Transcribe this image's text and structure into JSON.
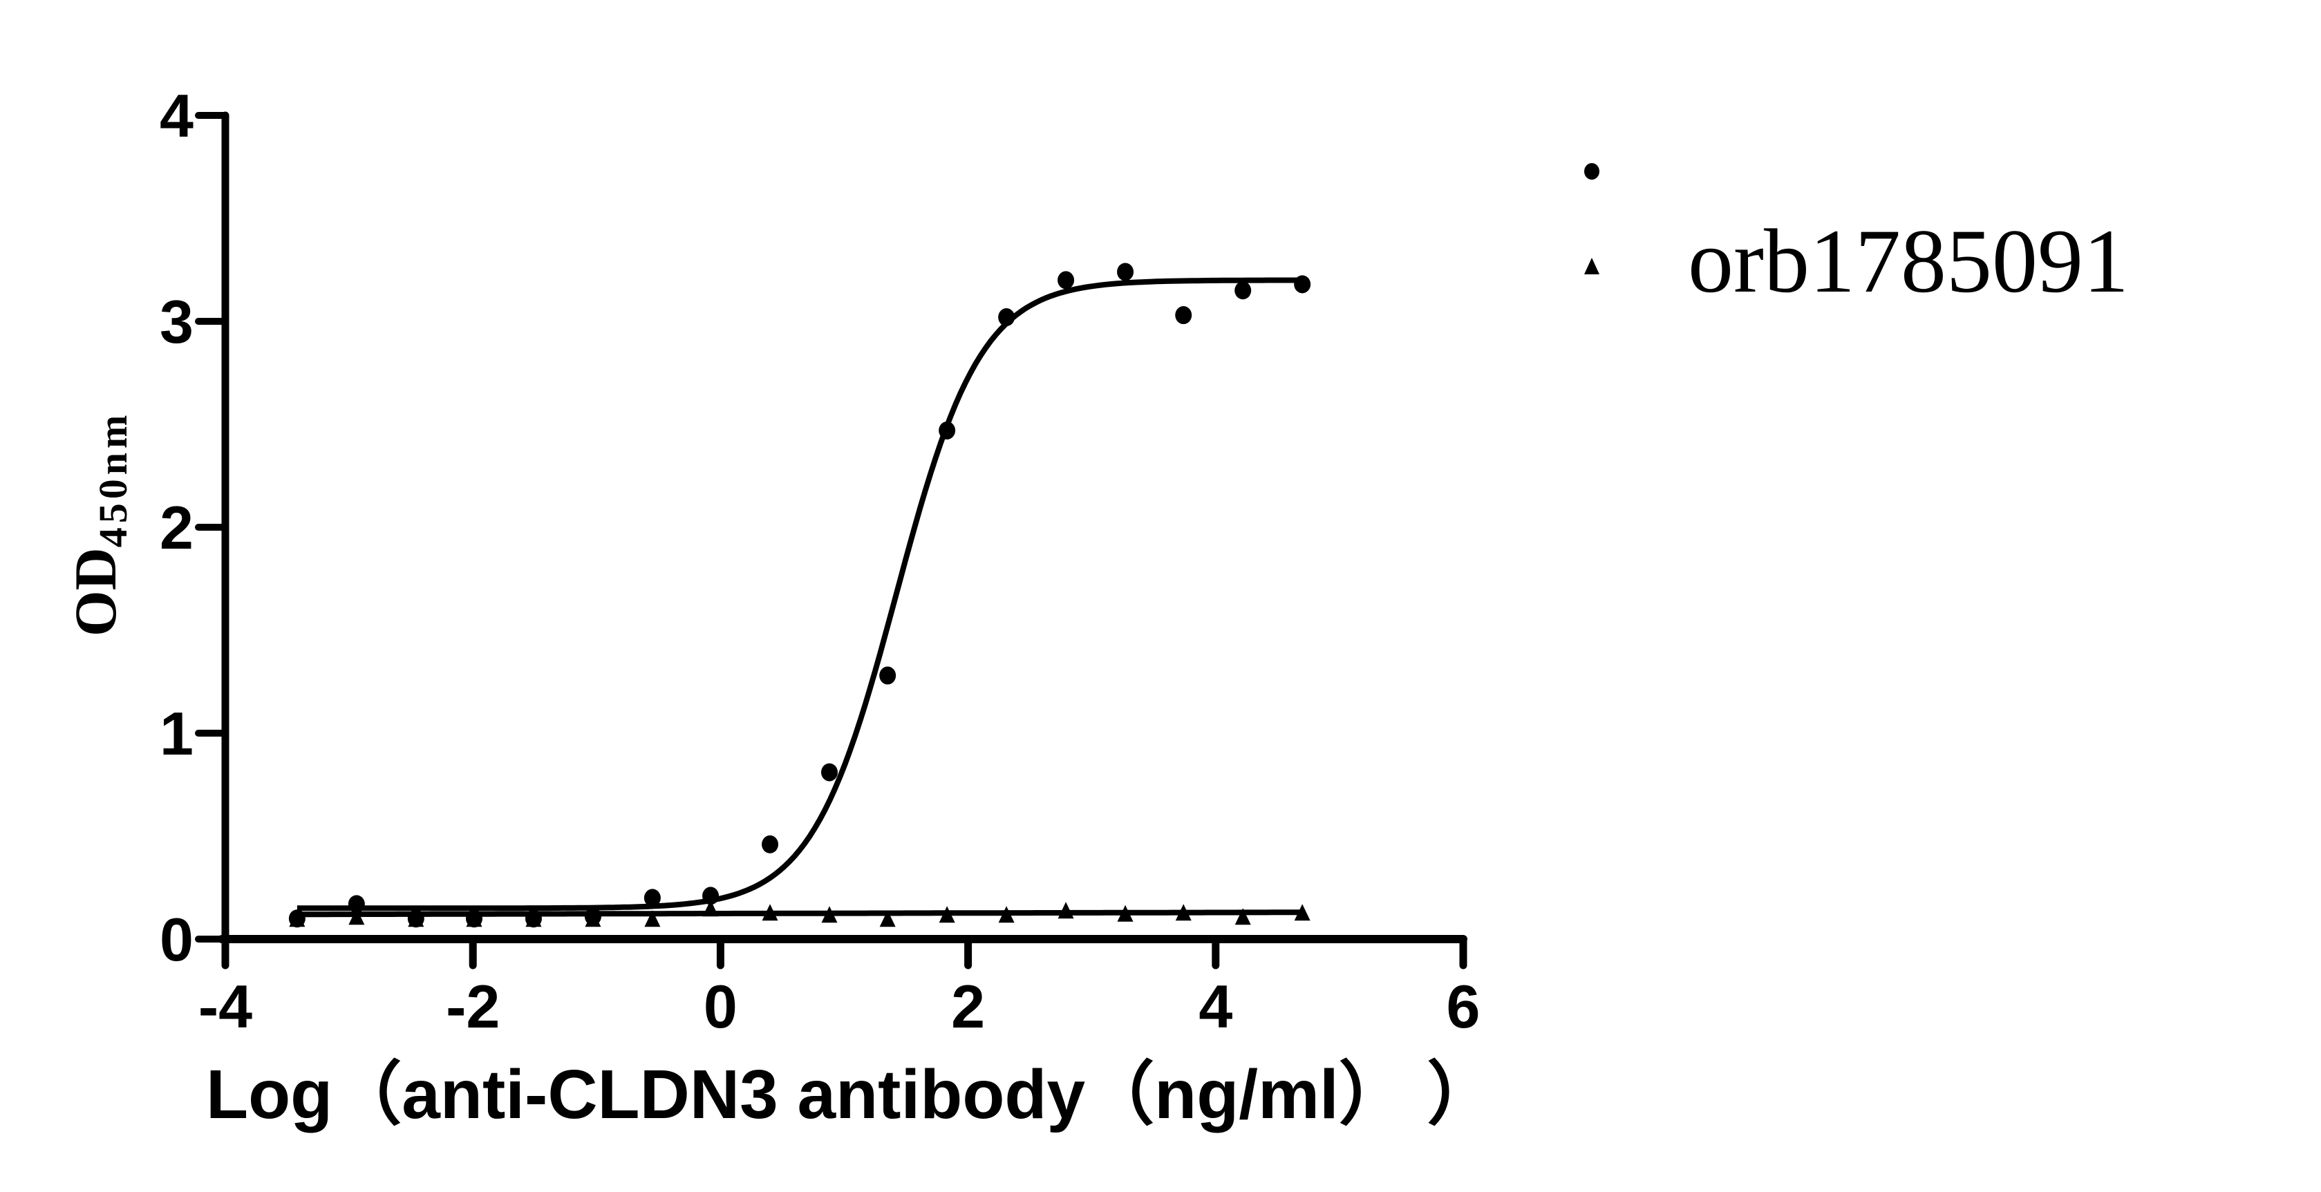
{
  "chart_data": {
    "type": "scatter",
    "title": "",
    "xlabel": "Log（anti-CLDN3 antibody（ng/ml）  ）",
    "ylabel": "OD",
    "ylabel_subscript": "450nm",
    "xlim": [
      -4,
      6
    ],
    "ylim": [
      0,
      4
    ],
    "x_ticks": [
      -4,
      -2,
      0,
      2,
      4,
      6
    ],
    "y_ticks": [
      0,
      1,
      2,
      3,
      4
    ],
    "grid": false,
    "legend_position": "upper-right-outside",
    "x": [
      -3.42,
      -2.94,
      -2.46,
      -1.99,
      -1.51,
      -1.03,
      -0.55,
      -0.08,
      0.4,
      0.88,
      1.35,
      1.83,
      2.31,
      2.79,
      3.27,
      3.74,
      4.22,
      4.7
    ],
    "series": [
      {
        "name": "",
        "marker": "circle",
        "values": [
          0.1,
          0.17,
          0.1,
          0.1,
          0.1,
          0.11,
          0.2,
          0.21,
          0.46,
          0.81,
          1.28,
          2.47,
          3.02,
          3.2,
          3.24,
          3.03,
          3.15,
          3.18
        ],
        "fit": {
          "model": "4PL",
          "bottom": 0.15,
          "top": 3.2,
          "logEC50": 1.42,
          "hill": 1.27
        }
      },
      {
        "name": "orb1785091",
        "marker": "triangle",
        "values": [
          0.1,
          0.11,
          0.1,
          0.1,
          0.1,
          0.1,
          0.1,
          0.15,
          0.13,
          0.12,
          0.1,
          0.12,
          0.12,
          0.14,
          0.125,
          0.13,
          0.11,
          0.13
        ],
        "fit": {
          "model": "linear",
          "start": 0.12,
          "end": 0.13
        }
      }
    ]
  },
  "legend": {
    "items": [
      {
        "marker": "circle",
        "label": ""
      },
      {
        "marker": "triangle",
        "label": "orb1785091"
      }
    ]
  },
  "colors": {
    "ink": "#000000",
    "background": "#ffffff"
  }
}
